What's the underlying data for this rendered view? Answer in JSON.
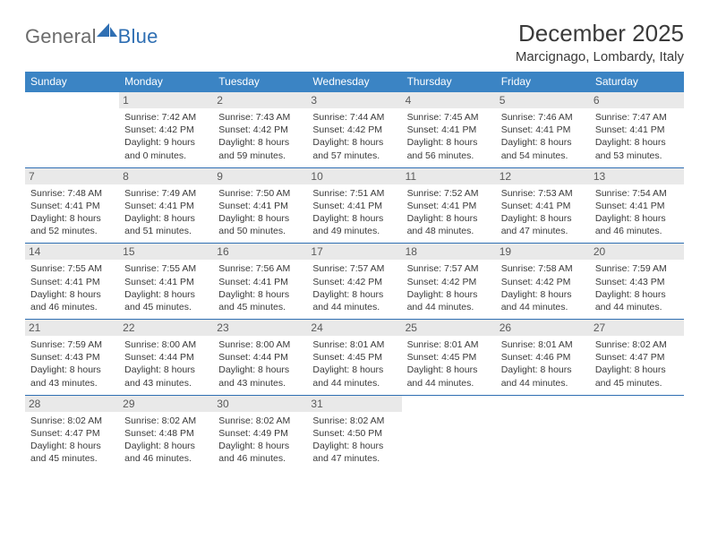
{
  "brand": {
    "name1": "General",
    "name2": "Blue"
  },
  "title": "December 2025",
  "location": "Marcignago, Lombardy, Italy",
  "colors": {
    "header_bar": "#3b84c4",
    "divider": "#2f6fb3",
    "daynum_bg": "#e9e9e9",
    "text": "#3a3a3a",
    "logo_gray": "#6b6b6b",
    "logo_blue": "#2f6fb3"
  },
  "days_of_week": [
    "Sunday",
    "Monday",
    "Tuesday",
    "Wednesday",
    "Thursday",
    "Friday",
    "Saturday"
  ],
  "weeks": [
    [
      {
        "n": "",
        "sr": "",
        "ss": "",
        "d1": "",
        "d2": ""
      },
      {
        "n": "1",
        "sr": "Sunrise: 7:42 AM",
        "ss": "Sunset: 4:42 PM",
        "d1": "Daylight: 9 hours",
        "d2": "and 0 minutes."
      },
      {
        "n": "2",
        "sr": "Sunrise: 7:43 AM",
        "ss": "Sunset: 4:42 PM",
        "d1": "Daylight: 8 hours",
        "d2": "and 59 minutes."
      },
      {
        "n": "3",
        "sr": "Sunrise: 7:44 AM",
        "ss": "Sunset: 4:42 PM",
        "d1": "Daylight: 8 hours",
        "d2": "and 57 minutes."
      },
      {
        "n": "4",
        "sr": "Sunrise: 7:45 AM",
        "ss": "Sunset: 4:41 PM",
        "d1": "Daylight: 8 hours",
        "d2": "and 56 minutes."
      },
      {
        "n": "5",
        "sr": "Sunrise: 7:46 AM",
        "ss": "Sunset: 4:41 PM",
        "d1": "Daylight: 8 hours",
        "d2": "and 54 minutes."
      },
      {
        "n": "6",
        "sr": "Sunrise: 7:47 AM",
        "ss": "Sunset: 4:41 PM",
        "d1": "Daylight: 8 hours",
        "d2": "and 53 minutes."
      }
    ],
    [
      {
        "n": "7",
        "sr": "Sunrise: 7:48 AM",
        "ss": "Sunset: 4:41 PM",
        "d1": "Daylight: 8 hours",
        "d2": "and 52 minutes."
      },
      {
        "n": "8",
        "sr": "Sunrise: 7:49 AM",
        "ss": "Sunset: 4:41 PM",
        "d1": "Daylight: 8 hours",
        "d2": "and 51 minutes."
      },
      {
        "n": "9",
        "sr": "Sunrise: 7:50 AM",
        "ss": "Sunset: 4:41 PM",
        "d1": "Daylight: 8 hours",
        "d2": "and 50 minutes."
      },
      {
        "n": "10",
        "sr": "Sunrise: 7:51 AM",
        "ss": "Sunset: 4:41 PM",
        "d1": "Daylight: 8 hours",
        "d2": "and 49 minutes."
      },
      {
        "n": "11",
        "sr": "Sunrise: 7:52 AM",
        "ss": "Sunset: 4:41 PM",
        "d1": "Daylight: 8 hours",
        "d2": "and 48 minutes."
      },
      {
        "n": "12",
        "sr": "Sunrise: 7:53 AM",
        "ss": "Sunset: 4:41 PM",
        "d1": "Daylight: 8 hours",
        "d2": "and 47 minutes."
      },
      {
        "n": "13",
        "sr": "Sunrise: 7:54 AM",
        "ss": "Sunset: 4:41 PM",
        "d1": "Daylight: 8 hours",
        "d2": "and 46 minutes."
      }
    ],
    [
      {
        "n": "14",
        "sr": "Sunrise: 7:55 AM",
        "ss": "Sunset: 4:41 PM",
        "d1": "Daylight: 8 hours",
        "d2": "and 46 minutes."
      },
      {
        "n": "15",
        "sr": "Sunrise: 7:55 AM",
        "ss": "Sunset: 4:41 PM",
        "d1": "Daylight: 8 hours",
        "d2": "and 45 minutes."
      },
      {
        "n": "16",
        "sr": "Sunrise: 7:56 AM",
        "ss": "Sunset: 4:41 PM",
        "d1": "Daylight: 8 hours",
        "d2": "and 45 minutes."
      },
      {
        "n": "17",
        "sr": "Sunrise: 7:57 AM",
        "ss": "Sunset: 4:42 PM",
        "d1": "Daylight: 8 hours",
        "d2": "and 44 minutes."
      },
      {
        "n": "18",
        "sr": "Sunrise: 7:57 AM",
        "ss": "Sunset: 4:42 PM",
        "d1": "Daylight: 8 hours",
        "d2": "and 44 minutes."
      },
      {
        "n": "19",
        "sr": "Sunrise: 7:58 AM",
        "ss": "Sunset: 4:42 PM",
        "d1": "Daylight: 8 hours",
        "d2": "and 44 minutes."
      },
      {
        "n": "20",
        "sr": "Sunrise: 7:59 AM",
        "ss": "Sunset: 4:43 PM",
        "d1": "Daylight: 8 hours",
        "d2": "and 44 minutes."
      }
    ],
    [
      {
        "n": "21",
        "sr": "Sunrise: 7:59 AM",
        "ss": "Sunset: 4:43 PM",
        "d1": "Daylight: 8 hours",
        "d2": "and 43 minutes."
      },
      {
        "n": "22",
        "sr": "Sunrise: 8:00 AM",
        "ss": "Sunset: 4:44 PM",
        "d1": "Daylight: 8 hours",
        "d2": "and 43 minutes."
      },
      {
        "n": "23",
        "sr": "Sunrise: 8:00 AM",
        "ss": "Sunset: 4:44 PM",
        "d1": "Daylight: 8 hours",
        "d2": "and 43 minutes."
      },
      {
        "n": "24",
        "sr": "Sunrise: 8:01 AM",
        "ss": "Sunset: 4:45 PM",
        "d1": "Daylight: 8 hours",
        "d2": "and 44 minutes."
      },
      {
        "n": "25",
        "sr": "Sunrise: 8:01 AM",
        "ss": "Sunset: 4:45 PM",
        "d1": "Daylight: 8 hours",
        "d2": "and 44 minutes."
      },
      {
        "n": "26",
        "sr": "Sunrise: 8:01 AM",
        "ss": "Sunset: 4:46 PM",
        "d1": "Daylight: 8 hours",
        "d2": "and 44 minutes."
      },
      {
        "n": "27",
        "sr": "Sunrise: 8:02 AM",
        "ss": "Sunset: 4:47 PM",
        "d1": "Daylight: 8 hours",
        "d2": "and 45 minutes."
      }
    ],
    [
      {
        "n": "28",
        "sr": "Sunrise: 8:02 AM",
        "ss": "Sunset: 4:47 PM",
        "d1": "Daylight: 8 hours",
        "d2": "and 45 minutes."
      },
      {
        "n": "29",
        "sr": "Sunrise: 8:02 AM",
        "ss": "Sunset: 4:48 PM",
        "d1": "Daylight: 8 hours",
        "d2": "and 46 minutes."
      },
      {
        "n": "30",
        "sr": "Sunrise: 8:02 AM",
        "ss": "Sunset: 4:49 PM",
        "d1": "Daylight: 8 hours",
        "d2": "and 46 minutes."
      },
      {
        "n": "31",
        "sr": "Sunrise: 8:02 AM",
        "ss": "Sunset: 4:50 PM",
        "d1": "Daylight: 8 hours",
        "d2": "and 47 minutes."
      },
      {
        "n": "",
        "sr": "",
        "ss": "",
        "d1": "",
        "d2": ""
      },
      {
        "n": "",
        "sr": "",
        "ss": "",
        "d1": "",
        "d2": ""
      },
      {
        "n": "",
        "sr": "",
        "ss": "",
        "d1": "",
        "d2": ""
      }
    ]
  ]
}
